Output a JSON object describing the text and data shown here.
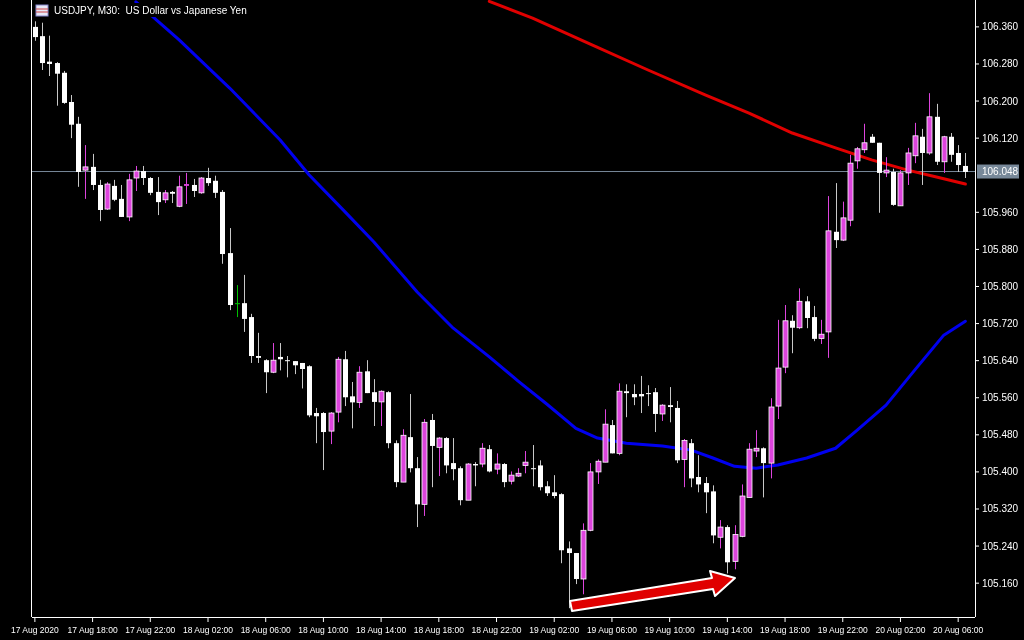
{
  "chart_data": {
    "type": "candlestick",
    "title": "USDJPY, M30:  US Dollar vs Japanese Yen",
    "x": [
      "2020-08-17T14:00",
      "2020-08-17T14:30",
      "2020-08-17T15:00",
      "2020-08-17T15:30",
      "2020-08-17T16:00",
      "2020-08-17T16:30",
      "2020-08-17T17:00",
      "2020-08-17T17:30",
      "2020-08-17T18:00",
      "2020-08-17T18:30",
      "2020-08-17T19:00",
      "2020-08-17T19:30",
      "2020-08-17T20:00",
      "2020-08-17T20:30",
      "2020-08-17T21:00",
      "2020-08-17T21:30",
      "2020-08-17T22:00",
      "2020-08-17T22:30",
      "2020-08-17T23:00",
      "2020-08-17T23:30",
      "2020-08-18T00:00",
      "2020-08-18T00:30",
      "2020-08-18T01:00",
      "2020-08-18T01:30",
      "2020-08-18T02:00",
      "2020-08-18T02:30",
      "2020-08-18T03:00",
      "2020-08-18T03:30",
      "2020-08-18T04:00",
      "2020-08-18T04:30",
      "2020-08-18T05:00",
      "2020-08-18T05:30",
      "2020-08-18T06:00",
      "2020-08-18T06:30",
      "2020-08-18T07:00",
      "2020-08-18T07:30",
      "2020-08-18T08:00",
      "2020-08-18T08:30",
      "2020-08-18T09:00",
      "2020-08-18T09:30",
      "2020-08-18T10:00",
      "2020-08-18T10:30",
      "2020-08-18T11:00",
      "2020-08-18T11:30",
      "2020-08-18T12:00",
      "2020-08-18T12:30",
      "2020-08-18T13:00",
      "2020-08-18T13:30",
      "2020-08-18T14:00",
      "2020-08-18T14:30",
      "2020-08-18T15:00",
      "2020-08-18T15:30",
      "2020-08-18T16:00",
      "2020-08-18T16:30",
      "2020-08-18T17:00",
      "2020-08-18T17:30",
      "2020-08-18T18:00",
      "2020-08-18T18:30",
      "2020-08-18T19:00",
      "2020-08-18T19:30",
      "2020-08-18T20:00",
      "2020-08-18T20:30",
      "2020-08-18T21:00",
      "2020-08-18T21:30",
      "2020-08-18T22:00",
      "2020-08-18T22:30",
      "2020-08-18T23:00",
      "2020-08-18T23:30",
      "2020-08-19T00:00",
      "2020-08-19T00:30",
      "2020-08-19T01:00",
      "2020-08-19T01:30",
      "2020-08-19T02:00",
      "2020-08-19T02:30",
      "2020-08-19T03:00",
      "2020-08-19T03:30",
      "2020-08-19T04:00",
      "2020-08-19T04:30",
      "2020-08-19T05:00",
      "2020-08-19T05:30",
      "2020-08-19T06:00",
      "2020-08-19T06:30",
      "2020-08-19T07:00",
      "2020-08-19T07:30",
      "2020-08-19T08:00",
      "2020-08-19T08:30",
      "2020-08-19T09:00",
      "2020-08-19T09:30",
      "2020-08-19T10:00",
      "2020-08-19T10:30",
      "2020-08-19T11:00",
      "2020-08-19T11:30",
      "2020-08-19T12:00",
      "2020-08-19T12:30",
      "2020-08-19T13:00",
      "2020-08-19T13:30",
      "2020-08-19T14:00",
      "2020-08-19T14:30",
      "2020-08-19T15:00",
      "2020-08-19T15:30",
      "2020-08-19T16:00",
      "2020-08-19T16:30",
      "2020-08-19T17:00",
      "2020-08-19T17:30",
      "2020-08-19T18:00",
      "2020-08-19T18:30",
      "2020-08-19T19:00",
      "2020-08-19T19:30",
      "2020-08-19T20:00",
      "2020-08-19T20:30",
      "2020-08-19T21:00",
      "2020-08-19T21:30",
      "2020-08-19T22:00",
      "2020-08-19T22:30",
      "2020-08-19T23:00",
      "2020-08-19T23:30",
      "2020-08-20T00:00",
      "2020-08-20T00:30",
      "2020-08-20T01:00",
      "2020-08-20T01:30",
      "2020-08-20T02:00",
      "2020-08-20T02:30",
      "2020-08-20T03:00",
      "2020-08-20T03:30",
      "2020-08-20T04:00",
      "2020-08-20T04:30",
      "2020-08-20T05:00",
      "2020-08-20T05:30",
      "2020-08-20T06:00",
      "2020-08-20T06:30"
    ],
    "ohlc": [
      [
        106.36,
        106.372,
        106.33,
        106.338
      ],
      [
        106.34,
        106.369,
        106.267,
        106.282
      ],
      [
        106.285,
        106.341,
        106.254,
        106.28
      ],
      [
        106.282,
        106.284,
        106.19,
        106.259
      ],
      [
        106.261,
        106.265,
        106.194,
        106.196
      ],
      [
        106.198,
        106.213,
        106.12,
        106.149
      ],
      [
        106.151,
        106.166,
        106.015,
        106.047
      ],
      [
        106.051,
        106.105,
        105.989,
        106.058
      ],
      [
        106.058,
        106.086,
        106.008,
        106.019
      ],
      [
        106.019,
        106.03,
        105.941,
        105.965
      ],
      [
        105.967,
        106.025,
        105.965,
        106.021
      ],
      [
        106.017,
        106.03,
        105.984,
        105.987
      ],
      [
        105.989,
        106.019,
        105.95,
        105.95
      ],
      [
        105.95,
        106.043,
        105.941,
        106.03
      ],
      [
        106.034,
        106.06,
        106.006,
        106.049
      ],
      [
        106.049,
        106.06,
        106.019,
        106.034
      ],
      [
        106.034,
        106.036,
        105.997,
        106.002
      ],
      [
        106.004,
        106.036,
        105.954,
        105.982
      ],
      [
        105.987,
        106.008,
        105.98,
        106.002
      ],
      [
        106.004,
        106.006,
        105.98,
        106.0
      ],
      [
        105.973,
        106.039,
        105.971,
        106.015
      ],
      [
        106.017,
        106.045,
        105.978,
        106.021
      ],
      [
        106.019,
        106.032,
        105.993,
        106.006
      ],
      [
        106.002,
        106.036,
        106.0,
        106.034
      ],
      [
        106.034,
        106.056,
        106.017,
        106.023
      ],
      [
        106.028,
        106.039,
        105.991,
        106.002
      ],
      [
        106.004,
        106.008,
        105.849,
        105.87
      ],
      [
        105.872,
        105.926,
        105.749,
        105.76
      ],
      [
        105.764,
        105.803,
        105.734,
        105.764
      ],
      [
        105.764,
        105.825,
        105.702,
        105.73
      ],
      [
        105.734,
        105.741,
        105.635,
        105.65
      ],
      [
        105.65,
        105.7,
        105.635,
        105.646
      ],
      [
        105.641,
        105.643,
        105.57,
        105.615
      ],
      [
        105.615,
        105.678,
        105.613,
        105.641
      ],
      [
        105.648,
        105.678,
        105.619,
        105.643
      ],
      [
        105.641,
        105.65,
        105.604,
        105.639
      ],
      [
        105.639,
        105.639,
        105.611,
        105.63
      ],
      [
        105.635,
        105.635,
        105.58,
        105.622
      ],
      [
        105.628,
        105.63,
        105.518,
        105.522
      ],
      [
        105.527,
        105.538,
        105.462,
        105.52
      ],
      [
        105.527,
        105.529,
        105.404,
        105.486
      ],
      [
        105.488,
        105.529,
        105.46,
        105.527
      ],
      [
        105.529,
        105.648,
        105.507,
        105.643
      ],
      [
        105.643,
        105.661,
        105.542,
        105.561
      ],
      [
        105.563,
        105.594,
        105.494,
        105.55
      ],
      [
        105.55,
        105.628,
        105.538,
        105.615
      ],
      [
        105.617,
        105.641,
        105.57,
        105.57
      ],
      [
        105.572,
        105.6,
        105.499,
        105.551
      ],
      [
        105.551,
        105.576,
        105.499,
        105.574
      ],
      [
        105.572,
        105.574,
        105.451,
        105.462
      ],
      [
        105.462,
        105.468,
        105.367,
        105.378
      ],
      [
        105.378,
        105.492,
        105.378,
        105.479
      ],
      [
        105.475,
        105.568,
        105.399,
        105.408
      ],
      [
        105.408,
        105.432,
        105.281,
        105.33
      ],
      [
        105.33,
        105.514,
        105.305,
        105.507
      ],
      [
        105.512,
        105.525,
        105.367,
        105.456
      ],
      [
        105.453,
        105.475,
        105.391,
        105.473
      ],
      [
        105.473,
        105.475,
        105.397,
        105.414
      ],
      [
        105.419,
        105.473,
        105.382,
        105.406
      ],
      [
        105.408,
        105.412,
        105.328,
        105.339
      ],
      [
        105.339,
        105.419,
        105.339,
        105.417
      ],
      [
        105.417,
        105.421,
        105.369,
        105.414
      ],
      [
        105.417,
        105.462,
        105.41,
        105.451
      ],
      [
        105.449,
        105.458,
        105.399,
        105.401
      ],
      [
        105.406,
        105.44,
        105.395,
        105.417
      ],
      [
        105.417,
        105.419,
        105.367,
        105.378
      ],
      [
        105.38,
        105.401,
        105.373,
        105.393
      ],
      [
        105.391,
        105.408,
        105.389,
        105.397
      ],
      [
        105.414,
        105.445,
        105.397,
        105.421
      ],
      [
        105.408,
        105.458,
        105.369,
        105.406
      ],
      [
        105.414,
        105.425,
        105.36,
        105.367
      ],
      [
        105.369,
        105.38,
        105.348,
        105.354
      ],
      [
        105.356,
        105.393,
        105.343,
        105.348
      ],
      [
        105.352,
        105.354,
        105.203,
        105.231
      ],
      [
        105.235,
        105.25,
        105.106,
        105.225
      ],
      [
        105.225,
        105.225,
        105.158,
        105.169
      ],
      [
        105.169,
        105.289,
        105.136,
        105.274
      ],
      [
        105.274,
        105.419,
        105.272,
        105.4
      ],
      [
        105.4,
        105.427,
        105.374,
        105.423
      ],
      [
        105.421,
        105.535,
        105.421,
        105.503
      ],
      [
        105.501,
        105.512,
        105.44,
        105.44
      ],
      [
        105.44,
        105.591,
        105.436,
        105.574
      ],
      [
        105.574,
        105.589,
        105.518,
        105.57
      ],
      [
        105.568,
        105.589,
        105.544,
        105.561
      ],
      [
        105.568,
        105.607,
        105.527,
        105.563
      ],
      [
        105.57,
        105.587,
        105.542,
        105.568
      ],
      [
        105.572,
        105.581,
        105.486,
        105.525
      ],
      [
        105.525,
        105.546,
        105.51,
        105.544
      ],
      [
        105.544,
        105.583,
        105.507,
        105.54
      ],
      [
        105.538,
        105.553,
        105.419,
        105.425
      ],
      [
        105.427,
        105.471,
        105.367,
        105.468
      ],
      [
        105.462,
        105.471,
        105.367,
        105.386
      ],
      [
        105.389,
        105.436,
        105.356,
        105.373
      ],
      [
        105.376,
        105.389,
        105.311,
        105.356
      ],
      [
        105.358,
        105.371,
        105.246,
        105.263
      ],
      [
        105.259,
        105.296,
        105.235,
        105.281
      ],
      [
        105.281,
        105.285,
        105.181,
        105.205
      ],
      [
        105.207,
        105.285,
        105.19,
        105.265
      ],
      [
        105.261,
        105.373,
        105.259,
        105.348
      ],
      [
        105.345,
        105.462,
        105.345,
        105.449
      ],
      [
        105.445,
        105.49,
        105.432,
        105.451
      ],
      [
        105.451,
        105.453,
        105.345,
        105.419
      ],
      [
        105.419,
        105.559,
        105.386,
        105.54
      ],
      [
        105.542,
        105.728,
        105.514,
        105.624
      ],
      [
        105.626,
        105.76,
        105.613,
        105.726
      ],
      [
        105.726,
        105.738,
        105.656,
        105.711
      ],
      [
        105.711,
        105.796,
        105.708,
        105.768
      ],
      [
        105.768,
        105.779,
        105.71,
        105.732
      ],
      [
        105.734,
        105.758,
        105.682,
        105.687
      ],
      [
        105.688,
        105.728,
        105.676,
        105.697
      ],
      [
        105.702,
        105.995,
        105.646,
        105.92
      ],
      [
        105.918,
        106.023,
        105.883,
        105.9
      ],
      [
        105.9,
        105.983,
        105.898,
        105.948
      ],
      [
        105.943,
        106.084,
        105.93,
        106.066
      ],
      [
        106.071,
        106.101,
        106.054,
        106.097
      ],
      [
        106.095,
        106.151,
        106.088,
        106.11
      ],
      [
        106.123,
        106.129,
        106.11,
        106.11
      ],
      [
        106.11,
        106.11,
        105.959,
        106.045
      ],
      [
        106.045,
        106.079,
        106.036,
        106.051
      ],
      [
        106.047,
        106.054,
        105.974,
        105.976
      ],
      [
        105.974,
        106.051,
        105.974,
        106.045
      ],
      [
        106.045,
        106.099,
        106.019,
        106.088
      ],
      [
        106.082,
        106.153,
        106.066,
        106.125
      ],
      [
        106.123,
        106.14,
        106.019,
        106.088
      ],
      [
        106.088,
        106.217,
        106.084,
        106.166
      ],
      [
        106.166,
        106.194,
        106.062,
        106.069
      ],
      [
        106.069,
        106.125,
        106.045,
        106.123
      ],
      [
        106.123,
        106.131,
        106.069,
        106.084
      ],
      [
        106.088,
        106.105,
        106.047,
        106.062
      ],
      [
        106.06,
        106.088,
        106.034,
        106.047
      ]
    ],
    "colors": [
      "#ffffff",
      "#ffffff",
      "#ffffff",
      "#ffffff",
      "#ffffff",
      "#ffffff",
      "#ffffff",
      "#dd44dd",
      "#ffffff",
      "#ffffff",
      "#dd44dd",
      "#ffffff",
      "#ffffff",
      "#dd44dd",
      "#dd44dd",
      "#ffffff",
      "#ffffff",
      "#ffffff",
      "#dd44dd",
      "#ffffff",
      "#dd44dd",
      "#dd44dd",
      "#ffffff",
      "#dd44dd",
      "#ffffff",
      "#ffffff",
      "#ffffff",
      "#ffffff",
      "#00c000",
      "#ffffff",
      "#ffffff",
      "#ffffff",
      "#ffffff",
      "#dd44dd",
      "#ffffff",
      "#ffffff",
      "#ffffff",
      "#ffffff",
      "#ffffff",
      "#ffffff",
      "#ffffff",
      "#dd44dd",
      "#dd44dd",
      "#ffffff",
      "#ffffff",
      "#dd44dd",
      "#ffffff",
      "#ffffff",
      "#dd44dd",
      "#ffffff",
      "#ffffff",
      "#dd44dd",
      "#ffffff",
      "#ffffff",
      "#dd44dd",
      "#ffffff",
      "#dd44dd",
      "#ffffff",
      "#ffffff",
      "#ffffff",
      "#dd44dd",
      "#ffffff",
      "#dd44dd",
      "#ffffff",
      "#dd44dd",
      "#ffffff",
      "#dd44dd",
      "#dd44dd",
      "#dd44dd",
      "#ffffff",
      "#ffffff",
      "#ffffff",
      "#ffffff",
      "#ffffff",
      "#ffffff",
      "#ffffff",
      "#dd44dd",
      "#dd44dd",
      "#dd44dd",
      "#dd44dd",
      "#ffffff",
      "#dd44dd",
      "#ffffff",
      "#ffffff",
      "#ffffff",
      "#ffffff",
      "#ffffff",
      "#dd44dd",
      "#ffffff",
      "#ffffff",
      "#dd44dd",
      "#ffffff",
      "#ffffff",
      "#ffffff",
      "#ffffff",
      "#dd44dd",
      "#ffffff",
      "#dd44dd",
      "#dd44dd",
      "#dd44dd",
      "#dd44dd",
      "#ffffff",
      "#dd44dd",
      "#dd44dd",
      "#dd44dd",
      "#ffffff",
      "#dd44dd",
      "#ffffff",
      "#ffffff",
      "#dd44dd",
      "#dd44dd",
      "#ffffff",
      "#dd44dd",
      "#dd44dd",
      "#dd44dd",
      "#dd44dd",
      "#ffffff",
      "#ffffff",
      "#dd44dd",
      "#ffffff",
      "#dd44dd",
      "#dd44dd",
      "#dd44dd",
      "#ffffff",
      "#dd44dd",
      "#ffffff",
      "#dd44dd",
      "#ffffff",
      "#ffffff",
      "#ffffff"
    ],
    "series": [
      {
        "type": "line",
        "color": "#0000ee",
        "x": [
          "2020-08-17T21:00",
          "2020-08-18T00:00",
          "2020-08-18T03:30",
          "2020-08-18T07:00",
          "2020-08-18T09:00",
          "2020-08-18T11:30",
          "2020-08-18T13:30",
          "2020-08-18T16:30",
          "2020-08-18T19:00",
          "2020-08-18T21:30",
          "2020-08-18T23:30",
          "2020-08-19T01:30",
          "2020-08-19T03:30",
          "2020-08-19T05:00",
          "2020-08-19T07:00",
          "2020-08-19T09:30",
          "2020-08-19T11:30",
          "2020-08-19T13:00",
          "2020-08-19T14:30",
          "2020-08-19T16:00",
          "2020-08-19T17:30",
          "2020-08-19T19:30",
          "2020-08-19T21:30",
          "2020-08-19T23:00",
          "2020-08-20T01:00",
          "2020-08-20T03:00",
          "2020-08-20T05:00",
          "2020-08-20T06:30"
        ],
        "values": [
          106.414,
          106.332,
          106.228,
          106.116,
          106.041,
          105.961,
          105.896,
          105.788,
          105.71,
          105.648,
          105.596,
          105.546,
          105.494,
          105.473,
          105.462,
          105.456,
          105.447,
          105.43,
          105.412,
          105.408,
          105.415,
          105.43,
          105.451,
          105.49,
          105.544,
          105.62,
          105.695,
          105.725
        ]
      },
      {
        "type": "line",
        "color": "#e00000",
        "x": [
          "2020-08-18T21:30",
          "2020-08-19T00:30",
          "2020-08-19T04:30",
          "2020-08-19T08:30",
          "2020-08-19T12:30",
          "2020-08-19T15:30",
          "2020-08-19T18:30",
          "2020-08-19T21:30",
          "2020-08-20T00:00",
          "2020-08-20T02:30",
          "2020-08-20T04:30",
          "2020-08-20T06:30"
        ],
        "values": [
          106.415,
          106.379,
          106.323,
          106.267,
          106.213,
          106.174,
          106.131,
          106.099,
          106.073,
          106.051,
          106.036,
          106.021
        ]
      }
    ],
    "xlim": [
      "2020-08-17T13:48",
      "2020-08-20T07:10"
    ],
    "xticks": [
      {
        "value": "2020-08-17T14:00",
        "label": "17 Aug 2020"
      },
      {
        "value": "2020-08-17T18:00",
        "label": "17 Aug 18:00"
      },
      {
        "value": "2020-08-17T22:00",
        "label": "17 Aug 22:00"
      },
      {
        "value": "2020-08-18T02:00",
        "label": "18 Aug 02:00"
      },
      {
        "value": "2020-08-18T06:00",
        "label": "18 Aug 06:00"
      },
      {
        "value": "2020-08-18T10:00",
        "label": "18 Aug 10:00"
      },
      {
        "value": "2020-08-18T14:00",
        "label": "18 Aug 14:00"
      },
      {
        "value": "2020-08-18T18:00",
        "label": "18 Aug 18:00"
      },
      {
        "value": "2020-08-18T22:00",
        "label": "18 Aug 22:00"
      },
      {
        "value": "2020-08-19T02:00",
        "label": "19 Aug 02:00"
      },
      {
        "value": "2020-08-19T06:00",
        "label": "19 Aug 06:00"
      },
      {
        "value": "2020-08-19T10:00",
        "label": "19 Aug 10:00"
      },
      {
        "value": "2020-08-19T14:00",
        "label": "19 Aug 14:00"
      },
      {
        "value": "2020-08-19T18:00",
        "label": "19 Aug 18:00"
      },
      {
        "value": "2020-08-19T22:00",
        "label": "19 Aug 22:00"
      },
      {
        "value": "2020-08-20T02:00",
        "label": "20 Aug 02:00"
      },
      {
        "value": "2020-08-20T06:00",
        "label": "20 Aug 06:00"
      }
    ],
    "ylim": [
      105.087,
      106.418
    ],
    "yticks": [
      {
        "value": 106.36,
        "label": "106.360"
      },
      {
        "value": 106.28,
        "label": "106.280"
      },
      {
        "value": 106.2,
        "label": "106.200"
      },
      {
        "value": 106.12,
        "label": "106.120"
      },
      {
        "value": 105.96,
        "label": "105.960"
      },
      {
        "value": 105.88,
        "label": "105.880"
      },
      {
        "value": 105.8,
        "label": "105.800"
      },
      {
        "value": 105.72,
        "label": "105.720"
      },
      {
        "value": 105.64,
        "label": "105.640"
      },
      {
        "value": 105.56,
        "label": "105.560"
      },
      {
        "value": 105.48,
        "label": "105.480"
      },
      {
        "value": 105.4,
        "label": "105.400"
      },
      {
        "value": 105.32,
        "label": "105.320"
      },
      {
        "value": 105.24,
        "label": "105.240"
      },
      {
        "value": 105.16,
        "label": "105.160"
      }
    ],
    "ref_lines": [
      {
        "axis": "y",
        "value": 106.048,
        "label": "106.048",
        "color": "#778899"
      }
    ]
  }
}
